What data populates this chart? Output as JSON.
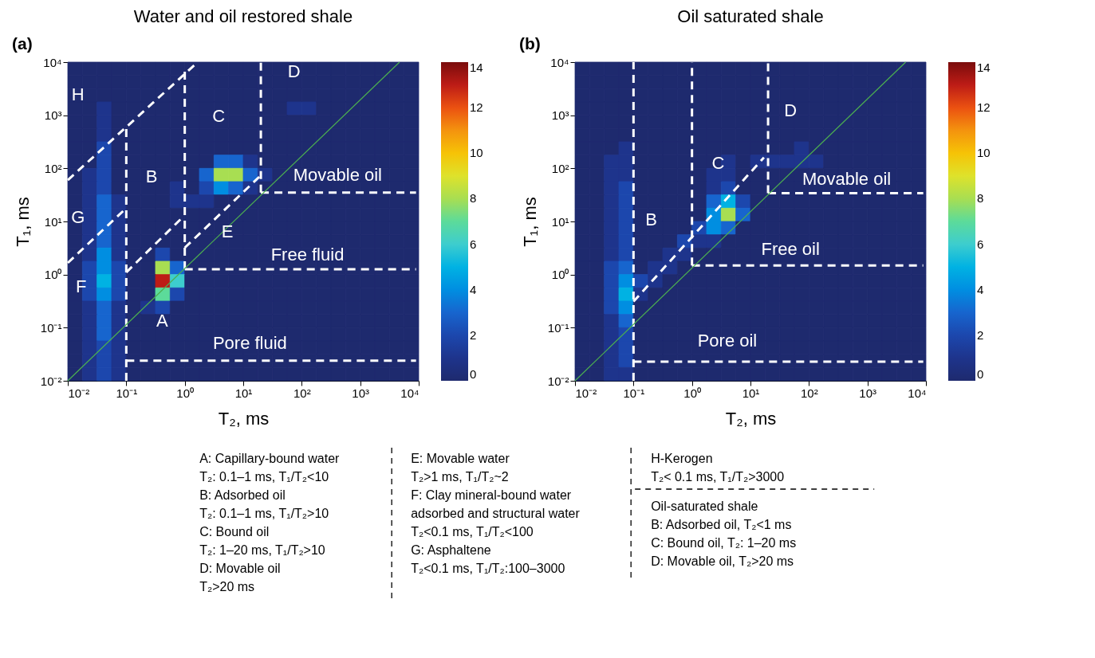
{
  "chart_data": [
    {
      "type": "heatmap",
      "title": "Water and oil restored shale",
      "xlabel": "T₂, ms",
      "ylabel": "T₁, ms",
      "log": "xy",
      "xlim": [
        0.01,
        10000
      ],
      "ylim": [
        0.01,
        10000
      ],
      "xticks": [
        {
          "value": 0.01,
          "label": "10⁻²"
        },
        {
          "value": 0.1,
          "label": "10⁻¹"
        },
        {
          "value": 1,
          "label": "10⁰"
        },
        {
          "value": 10,
          "label": "10¹"
        },
        {
          "value": 100,
          "label": "10²"
        },
        {
          "value": 1000,
          "label": "10³"
        },
        {
          "value": 10000,
          "label": "10⁴"
        }
      ],
      "yticks": [
        {
          "value": 0.01,
          "label": "10⁻²"
        },
        {
          "value": 0.1,
          "label": "10⁻¹"
        },
        {
          "value": 1,
          "label": "10⁰"
        },
        {
          "value": 10,
          "label": "10¹"
        },
        {
          "value": 100,
          "label": "10²"
        },
        {
          "value": 1000,
          "label": "10³"
        },
        {
          "value": 10000,
          "label": "10⁴"
        }
      ],
      "clim": [
        0,
        14
      ],
      "cticks": [
        0,
        2,
        4,
        6,
        8,
        10,
        12,
        14
      ],
      "x": [
        0.01334,
        0.02371,
        0.04217,
        0.07499,
        0.1334,
        0.2371,
        0.4217,
        0.7499,
        1.334,
        2.371,
        4.217,
        7.499,
        13.34,
        23.71,
        42.17,
        74.99,
        133.4,
        237.1,
        421.7,
        749.9,
        1334,
        2371,
        4217,
        7499
      ],
      "y": [
        7499,
        4217,
        2371,
        1334,
        749.9,
        421.7,
        237.1,
        133.4,
        74.99,
        42.17,
        23.71,
        13.34,
        7.499,
        4.217,
        2.371,
        1.334,
        0.7499,
        0.4217,
        0.2371,
        0.1334,
        0.07499,
        0.04217,
        0.02371,
        0.01334
      ],
      "cells": [
        [
          0,
          0,
          0,
          0,
          0,
          0,
          0,
          0,
          0,
          0,
          0,
          0,
          0,
          0,
          0,
          0,
          0,
          0,
          0,
          0,
          0,
          0,
          0,
          0
        ],
        [
          0,
          0,
          0,
          0,
          0,
          0,
          0,
          0,
          0,
          0,
          0,
          0,
          0,
          0,
          0,
          0,
          0,
          0,
          0,
          0,
          0,
          0,
          0,
          0
        ],
        [
          0,
          0,
          0,
          0,
          0,
          0,
          0,
          0,
          0,
          0,
          0,
          0,
          0,
          0,
          0,
          0,
          0,
          0,
          0,
          0,
          0,
          0,
          0,
          0
        ],
        [
          0,
          0,
          1,
          0,
          0,
          0,
          0,
          0,
          0,
          0,
          0,
          0,
          0,
          0,
          0,
          1,
          1,
          0,
          0,
          0,
          0,
          0,
          0,
          0
        ],
        [
          0,
          0,
          1,
          0,
          0,
          0,
          0,
          0,
          0,
          0,
          0,
          0,
          0,
          0,
          0,
          0,
          0,
          0,
          0,
          0,
          0,
          0,
          0,
          0
        ],
        [
          0,
          0,
          1,
          0,
          0,
          0,
          0,
          0,
          0,
          0,
          0,
          0,
          0,
          0,
          0,
          0,
          0,
          0,
          0,
          0,
          0,
          0,
          0,
          0
        ],
        [
          0,
          0,
          2,
          0,
          0,
          0,
          0,
          0,
          0,
          0,
          0,
          0,
          0,
          0,
          0,
          0,
          0,
          0,
          0,
          0,
          0,
          0,
          0,
          0
        ],
        [
          0,
          0,
          2,
          0,
          0,
          0,
          0,
          0,
          0,
          0,
          3,
          3,
          1,
          0,
          0,
          0,
          0,
          0,
          0,
          0,
          0,
          0,
          0,
          0
        ],
        [
          0,
          1,
          2,
          0,
          0,
          0,
          0,
          0,
          0,
          3,
          8,
          8,
          3,
          1,
          0,
          0,
          0,
          0,
          0,
          0,
          0,
          0,
          0,
          0
        ],
        [
          0,
          1,
          2,
          0,
          0,
          0,
          0,
          1,
          0,
          2,
          4,
          3,
          1,
          0,
          0,
          0,
          0,
          0,
          0,
          0,
          0,
          0,
          0,
          0
        ],
        [
          0,
          1,
          3,
          1,
          0,
          0,
          0,
          1,
          1,
          1,
          0,
          0,
          0,
          0,
          0,
          0,
          0,
          0,
          0,
          0,
          0,
          0,
          0,
          0
        ],
        [
          0,
          1,
          3,
          1,
          0,
          0,
          0,
          0,
          0,
          0,
          0,
          0,
          0,
          0,
          0,
          0,
          0,
          0,
          0,
          0,
          0,
          0,
          0,
          0
        ],
        [
          0,
          1,
          3,
          1,
          0,
          0,
          0,
          0,
          0,
          0,
          0,
          0,
          0,
          0,
          0,
          0,
          0,
          0,
          0,
          0,
          0,
          0,
          0,
          0
        ],
        [
          0,
          1,
          3,
          1,
          0,
          0,
          0,
          0,
          0,
          0,
          0,
          0,
          0,
          0,
          0,
          0,
          0,
          0,
          0,
          0,
          0,
          0,
          0,
          0
        ],
        [
          0,
          1,
          4,
          1,
          0,
          0,
          2,
          0,
          0,
          0,
          0,
          0,
          0,
          0,
          0,
          0,
          0,
          0,
          0,
          0,
          0,
          0,
          0,
          0
        ],
        [
          0,
          2,
          4,
          2,
          0,
          0,
          8,
          3,
          0,
          0,
          0,
          0,
          0,
          0,
          0,
          0,
          0,
          0,
          0,
          0,
          0,
          0,
          0,
          0
        ],
        [
          0,
          2,
          5,
          2,
          0,
          0,
          13,
          6,
          0,
          0,
          0,
          0,
          0,
          0,
          0,
          0,
          0,
          0,
          0,
          0,
          0,
          0,
          0,
          0
        ],
        [
          0,
          2,
          4,
          2,
          0,
          0,
          7,
          2,
          0,
          0,
          0,
          0,
          0,
          0,
          0,
          0,
          0,
          0,
          0,
          0,
          0,
          0,
          0,
          0
        ],
        [
          0,
          1,
          3,
          1,
          0,
          1,
          2,
          0,
          0,
          0,
          0,
          0,
          0,
          0,
          0,
          0,
          0,
          0,
          0,
          0,
          0,
          0,
          0,
          0
        ],
        [
          0,
          1,
          3,
          1,
          0,
          0,
          0,
          0,
          0,
          0,
          0,
          0,
          0,
          0,
          0,
          0,
          0,
          0,
          0,
          0,
          0,
          0,
          0,
          0
        ],
        [
          0,
          1,
          3,
          1,
          0,
          0,
          0,
          0,
          0,
          0,
          0,
          0,
          0,
          0,
          0,
          0,
          0,
          0,
          0,
          0,
          0,
          0,
          0,
          0
        ],
        [
          0,
          1,
          2,
          1,
          0,
          0,
          0,
          0,
          0,
          0,
          0,
          0,
          0,
          0,
          0,
          0,
          0,
          0,
          0,
          0,
          0,
          0,
          0,
          0
        ],
        [
          0,
          1,
          2,
          1,
          0,
          0,
          0,
          0,
          0,
          0,
          0,
          0,
          0,
          0,
          0,
          0,
          0,
          0,
          0,
          0,
          0,
          0,
          0,
          0
        ],
        [
          0,
          1,
          2,
          1,
          0,
          0,
          0,
          0,
          0,
          0,
          0,
          0,
          0,
          0,
          0,
          0,
          0,
          0,
          0,
          0,
          0,
          0,
          0,
          0
        ]
      ],
      "series": [
        {
          "type": "line",
          "color": "#ffffff",
          "line_style": "dashed",
          "x": [
            0.01,
            1.67
          ],
          "values": [
            60,
            10000
          ]
        },
        {
          "type": "line",
          "color": "#ffffff",
          "line_style": "dashed",
          "x": [
            0.1,
            0.1
          ],
          "values": [
            0.01,
            600
          ]
        },
        {
          "type": "line",
          "color": "#ffffff",
          "line_style": "dashed",
          "x": [
            0.01,
            0.09
          ],
          "values": [
            1.66,
            16
          ]
        },
        {
          "type": "line",
          "color": "#ffffff",
          "line_style": "dashed",
          "x": [
            0.1,
            0.92
          ],
          "values": [
            1.1,
            12
          ]
        },
        {
          "type": "line",
          "color": "#ffffff",
          "line_style": "dashed",
          "x": [
            1,
            1
          ],
          "values": [
            1.26,
            8000
          ]
        },
        {
          "type": "line",
          "color": "#ffffff",
          "line_style": "dashed",
          "x": [
            1,
            19
          ],
          "values": [
            3.2,
            70
          ]
        },
        {
          "type": "line",
          "color": "#ffffff",
          "line_style": "dashed",
          "x": [
            20,
            20
          ],
          "values": [
            35,
            10000
          ]
        },
        {
          "type": "line",
          "color": "#ffffff",
          "line_style": "dashed",
          "x": [
            20,
            9000
          ],
          "values": [
            35,
            35
          ]
        },
        {
          "type": "line",
          "color": "#ffffff",
          "line_style": "dashed",
          "x": [
            1,
            9000
          ],
          "values": [
            1.26,
            1.26
          ]
        },
        {
          "type": "line",
          "color": "#ffffff",
          "line_style": "dashed",
          "x": [
            0.1,
            9000
          ],
          "values": [
            0.024,
            0.024
          ]
        },
        {
          "type": "line",
          "color": "#4caf50",
          "line_style": "solid",
          "x": [
            0.01,
            4700
          ],
          "values": [
            0.01,
            10000
          ]
        }
      ],
      "annotations": [
        "(a)",
        "H",
        "G",
        "F",
        "A",
        "B",
        "C",
        "D",
        "E",
        "Movable oil",
        "Free fluid",
        "Pore fluid"
      ]
    },
    {
      "type": "heatmap",
      "title": "Oil saturated shale",
      "xlabel": "T₂, ms",
      "ylabel": "T₁, ms",
      "log": "xy",
      "xlim": [
        0.01,
        10000
      ],
      "ylim": [
        0.01,
        10000
      ],
      "xticks": [
        {
          "value": 0.01,
          "label": "10⁻²"
        },
        {
          "value": 0.1,
          "label": "10⁻¹"
        },
        {
          "value": 1,
          "label": "10⁰"
        },
        {
          "value": 10,
          "label": "10¹"
        },
        {
          "value": 100,
          "label": "10²"
        },
        {
          "value": 1000,
          "label": "10³"
        },
        {
          "value": 10000,
          "label": "10⁴"
        }
      ],
      "yticks": [
        {
          "value": 0.01,
          "label": "10⁻²"
        },
        {
          "value": 0.1,
          "label": "10⁻¹"
        },
        {
          "value": 1,
          "label": "10⁰"
        },
        {
          "value": 10,
          "label": "10¹"
        },
        {
          "value": 100,
          "label": "10²"
        },
        {
          "value": 1000,
          "label": "10³"
        },
        {
          "value": 10000,
          "label": "10⁴"
        }
      ],
      "clim": [
        0,
        14
      ],
      "cticks": [
        0,
        2,
        4,
        6,
        8,
        10,
        12,
        14
      ],
      "x": [
        0.01334,
        0.02371,
        0.04217,
        0.07499,
        0.1334,
        0.2371,
        0.4217,
        0.7499,
        1.334,
        2.371,
        4.217,
        7.499,
        13.34,
        23.71,
        42.17,
        74.99,
        133.4,
        237.1,
        421.7,
        749.9,
        1334,
        2371,
        4217,
        7499
      ],
      "y": [
        7499,
        4217,
        2371,
        1334,
        749.9,
        421.7,
        237.1,
        133.4,
        74.99,
        42.17,
        23.71,
        13.34,
        7.499,
        4.217,
        2.371,
        1.334,
        0.7499,
        0.4217,
        0.2371,
        0.1334,
        0.07499,
        0.04217,
        0.02371,
        0.01334
      ],
      "cells": [
        [
          0,
          0,
          0,
          0,
          0,
          0,
          0,
          0,
          0,
          0,
          0,
          0,
          0,
          0,
          0,
          0,
          0,
          0,
          0,
          0,
          0,
          0,
          0,
          0
        ],
        [
          0,
          0,
          0,
          0,
          0,
          0,
          0,
          0,
          0,
          0,
          0,
          0,
          0,
          0,
          0,
          0,
          0,
          0,
          0,
          0,
          0,
          0,
          0,
          0
        ],
        [
          0,
          0,
          0,
          0,
          0,
          0,
          0,
          0,
          0,
          0,
          0,
          0,
          0,
          0,
          0,
          0,
          0,
          0,
          0,
          0,
          0,
          0,
          0,
          0
        ],
        [
          0,
          0,
          0,
          0,
          0,
          0,
          0,
          0,
          0,
          0,
          0,
          0,
          0,
          0,
          0,
          0,
          0,
          0,
          0,
          0,
          0,
          0,
          0,
          0
        ],
        [
          0,
          0,
          0,
          0,
          0,
          0,
          0,
          0,
          0,
          0,
          0,
          0,
          0,
          0,
          0,
          0,
          0,
          0,
          0,
          0,
          0,
          0,
          0,
          0
        ],
        [
          0,
          0,
          0,
          0,
          0,
          0,
          0,
          0,
          0,
          0,
          0,
          0,
          0,
          0,
          0,
          0,
          0,
          0,
          0,
          0,
          0,
          0,
          0,
          0
        ],
        [
          0,
          0,
          0,
          1,
          0,
          0,
          0,
          0,
          0,
          0,
          0,
          0,
          0,
          0,
          0,
          1,
          0,
          0,
          0,
          0,
          0,
          0,
          0,
          0
        ],
        [
          0,
          0,
          1,
          1,
          0,
          0,
          0,
          0,
          0,
          0,
          1,
          0,
          1,
          1,
          1,
          1,
          1,
          0,
          0,
          0,
          0,
          0,
          0,
          0
        ],
        [
          0,
          0,
          1,
          1,
          0,
          0,
          0,
          0,
          0,
          1,
          1,
          0,
          0,
          0,
          0,
          0,
          0,
          0,
          0,
          0,
          0,
          0,
          0,
          0
        ],
        [
          0,
          0,
          1,
          2,
          0,
          0,
          0,
          0,
          0,
          1,
          2,
          0,
          0,
          0,
          0,
          0,
          0,
          0,
          0,
          0,
          0,
          0,
          0,
          0
        ],
        [
          0,
          0,
          1,
          2,
          0,
          0,
          0,
          0,
          0,
          3,
          5,
          2,
          0,
          0,
          0,
          0,
          0,
          0,
          0,
          0,
          0,
          0,
          0,
          0
        ],
        [
          0,
          0,
          1,
          2,
          0,
          0,
          0,
          0,
          0,
          4,
          8,
          3,
          0,
          0,
          0,
          0,
          0,
          0,
          0,
          0,
          0,
          0,
          0,
          0
        ],
        [
          0,
          0,
          1,
          2,
          0,
          0,
          0,
          0,
          2,
          4,
          3,
          0,
          0,
          0,
          0,
          0,
          0,
          0,
          0,
          0,
          0,
          0,
          0,
          0
        ],
        [
          0,
          0,
          1,
          2,
          0,
          0,
          0,
          2,
          1,
          1,
          0,
          0,
          0,
          0,
          0,
          0,
          0,
          0,
          0,
          0,
          0,
          0,
          0,
          0
        ],
        [
          0,
          0,
          1,
          2,
          0,
          0,
          1,
          1,
          0,
          0,
          0,
          0,
          0,
          0,
          0,
          0,
          0,
          0,
          0,
          0,
          0,
          0,
          0,
          0
        ],
        [
          0,
          0,
          2,
          3,
          0,
          1,
          1,
          0,
          0,
          0,
          0,
          0,
          0,
          0,
          0,
          0,
          0,
          0,
          0,
          0,
          0,
          0,
          0,
          0
        ],
        [
          0,
          0,
          2,
          4,
          2,
          1,
          0,
          0,
          0,
          0,
          0,
          0,
          0,
          0,
          0,
          0,
          0,
          0,
          0,
          0,
          0,
          0,
          0,
          0
        ],
        [
          0,
          0,
          2,
          5,
          1,
          0,
          0,
          0,
          0,
          0,
          0,
          0,
          0,
          0,
          0,
          0,
          0,
          0,
          0,
          0,
          0,
          0,
          0,
          0
        ],
        [
          0,
          0,
          2,
          4,
          0,
          0,
          0,
          0,
          0,
          0,
          0,
          0,
          0,
          0,
          0,
          0,
          0,
          0,
          0,
          0,
          0,
          0,
          0,
          0
        ],
        [
          0,
          0,
          1,
          3,
          0,
          0,
          0,
          0,
          0,
          0,
          0,
          0,
          0,
          0,
          0,
          0,
          0,
          0,
          0,
          0,
          0,
          0,
          0,
          0
        ],
        [
          0,
          0,
          1,
          2,
          0,
          0,
          0,
          0,
          0,
          0,
          0,
          0,
          0,
          0,
          0,
          0,
          0,
          0,
          0,
          0,
          0,
          0,
          0,
          0
        ],
        [
          0,
          0,
          1,
          2,
          0,
          0,
          0,
          0,
          0,
          0,
          0,
          0,
          0,
          0,
          0,
          0,
          0,
          0,
          0,
          0,
          0,
          0,
          0,
          0
        ],
        [
          0,
          0,
          1,
          2,
          0,
          0,
          0,
          0,
          0,
          0,
          0,
          0,
          0,
          0,
          0,
          0,
          0,
          0,
          0,
          0,
          0,
          0,
          0,
          0
        ],
        [
          0,
          0,
          1,
          1,
          0,
          0,
          0,
          0,
          0,
          0,
          0,
          0,
          0,
          0,
          0,
          0,
          0,
          0,
          0,
          0,
          0,
          0,
          0,
          0
        ]
      ],
      "series": [
        {
          "type": "line",
          "color": "#ffffff",
          "line_style": "dashed",
          "x": [
            0.1,
            0.1
          ],
          "values": [
            0.01,
            10000
          ]
        },
        {
          "type": "line",
          "color": "#ffffff",
          "line_style": "dashed",
          "x": [
            1,
            1
          ],
          "values": [
            1.48,
            10000
          ]
        },
        {
          "type": "line",
          "color": "#ffffff",
          "line_style": "dashed",
          "x": [
            20,
            20
          ],
          "values": [
            34,
            10000
          ]
        },
        {
          "type": "line",
          "color": "#ffffff",
          "line_style": "dashed",
          "x": [
            0.1,
            17
          ],
          "values": [
            0.31,
            160
          ]
        },
        {
          "type": "line",
          "color": "#ffffff",
          "line_style": "dashed",
          "x": [
            20,
            9000
          ],
          "values": [
            34,
            34
          ]
        },
        {
          "type": "line",
          "color": "#ffffff",
          "line_style": "dashed",
          "x": [
            1,
            9000
          ],
          "values": [
            1.48,
            1.48
          ]
        },
        {
          "type": "line",
          "color": "#ffffff",
          "line_style": "dashed",
          "x": [
            0.1,
            9000
          ],
          "values": [
            0.023,
            0.023
          ]
        },
        {
          "type": "line",
          "color": "#4caf50",
          "line_style": "solid",
          "x": [
            0.01,
            4500
          ],
          "values": [
            0.01,
            10000
          ]
        }
      ],
      "annotations": [
        "(b)",
        "B",
        "C",
        "D",
        "Movable oil",
        "Free oil",
        "Pore oil"
      ]
    },
    {
      "type": "other",
      "annotations": [
        "A: Capillary-bound water",
        "T₂: 0.1–1 ms, T₁/T₂<10",
        "B: Adsorbed oil",
        "T₂: 0.1–1 ms, T₁/T₂>10",
        "C: Bound oil",
        "T₂: 1–20 ms, T₁/T₂>10",
        "D: Movable oil",
        "T₂>20 ms"
      ]
    },
    {
      "type": "other",
      "annotations": [
        "E: Movable water",
        "T₂>1 ms, T₁/T₂~2",
        "F: Clay mineral-bound water",
        "adsorbed and structural water",
        "T₂<0.1 ms, T₁/T₂<100",
        "G: Asphaltene",
        "T₂<0.1 ms, T₁/T₂:100–3000"
      ]
    },
    {
      "type": "other",
      "annotations": [
        "H-Kerogen",
        "T₂< 0.1 ms, T₁/T₂>3000"
      ]
    },
    {
      "type": "other",
      "annotations": [
        "Oil-saturated shale",
        "B: Adsorbed oil, T₂<1 ms",
        "C: Bound oil, T₂: 1–20 ms",
        "D: Movable oil, T₂>20 ms"
      ]
    }
  ]
}
